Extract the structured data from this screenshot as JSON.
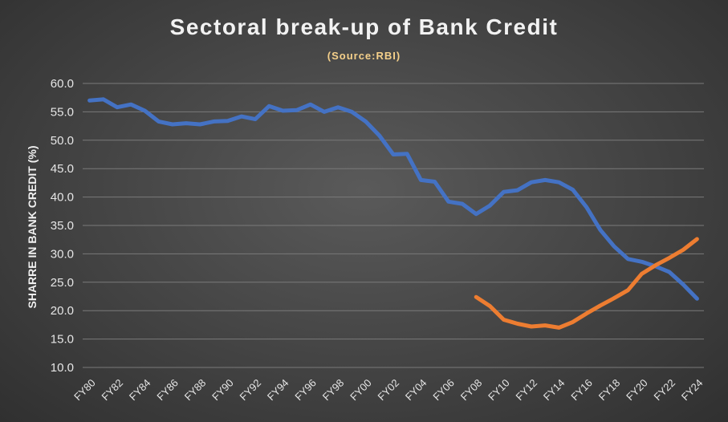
{
  "chart_data": {
    "type": "line",
    "title": "Sectoral break-up of Bank Credit",
    "subtitle": "(Source:RBI)",
    "xlabel": "",
    "ylabel": "SHARRE IN BANK CREDIT (%)",
    "ylim": [
      10,
      60
    ],
    "yticks": [
      "10.0",
      "15.0",
      "20.0",
      "25.0",
      "30.0",
      "35.0",
      "40.0",
      "45.0",
      "50.0",
      "55.0",
      "60.0"
    ],
    "grid": true,
    "categories": [
      "FY80",
      "FY81",
      "FY82",
      "FY83",
      "FY84",
      "FY85",
      "FY86",
      "FY87",
      "FY88",
      "FY89",
      "FY90",
      "FY91",
      "FY92",
      "FY93",
      "FY94",
      "FY95",
      "FY96",
      "FY97",
      "FY98",
      "FY99",
      "FY00",
      "FY01",
      "FY02",
      "FY03",
      "FY04",
      "FY05",
      "FY06",
      "FY07",
      "FY08",
      "FY09",
      "FY10",
      "FY11",
      "FY12",
      "FY13",
      "FY14",
      "FY15",
      "FY16",
      "FY17",
      "FY18",
      "FY19",
      "FY20",
      "FY21",
      "FY22",
      "FY23",
      "FY24"
    ],
    "x_tick_labels": [
      "FY80",
      "FY82",
      "FY84",
      "FY86",
      "FY88",
      "FY90",
      "FY92",
      "FY94",
      "FY96",
      "FY98",
      "FY00",
      "FY02",
      "FY04",
      "FY06",
      "FY08",
      "FY10",
      "FY12",
      "FY14",
      "FY16",
      "FY18",
      "FY20",
      "FY22",
      "FY24"
    ],
    "series": [
      {
        "color": "#4472c4",
        "values": [
          57.0,
          57.2,
          55.8,
          56.3,
          55.2,
          53.3,
          52.8,
          53.0,
          52.8,
          53.3,
          53.4,
          54.2,
          53.7,
          56.0,
          55.2,
          55.3,
          56.3,
          55.0,
          55.8,
          55.0,
          53.3,
          50.8,
          47.5,
          47.6,
          43.0,
          42.7,
          39.2,
          38.8,
          37.0,
          38.5,
          40.9,
          41.2,
          42.6,
          43.0,
          42.6,
          41.3,
          38.2,
          34.2,
          31.3,
          29.1,
          28.6,
          27.8,
          26.8,
          24.6,
          22.1
        ]
      },
      {
        "color": "#ed7d31",
        "values": [
          null,
          null,
          null,
          null,
          null,
          null,
          null,
          null,
          null,
          null,
          null,
          null,
          null,
          null,
          null,
          null,
          null,
          null,
          null,
          null,
          null,
          null,
          null,
          null,
          null,
          null,
          null,
          null,
          22.4,
          20.8,
          18.4,
          17.7,
          17.2,
          17.4,
          17.0,
          18.0,
          19.5,
          20.9,
          22.2,
          23.6,
          26.5,
          28.0,
          29.3,
          30.7,
          32.6
        ]
      }
    ]
  }
}
